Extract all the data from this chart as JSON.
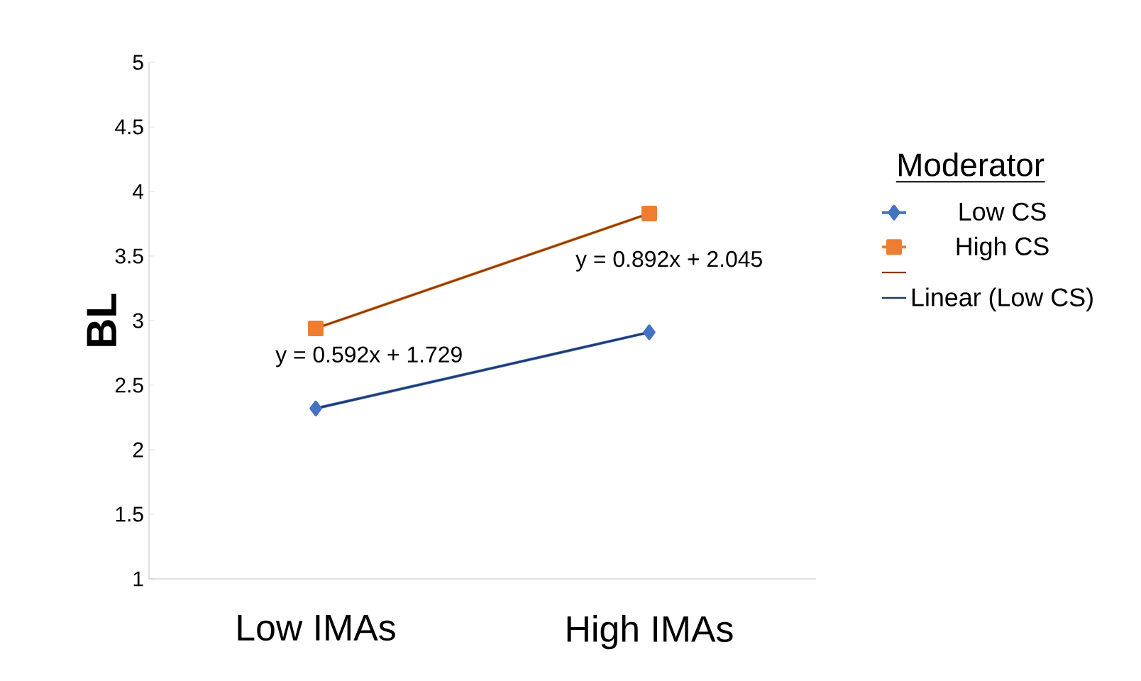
{
  "chart_data": {
    "type": "line",
    "ylabel": "BL",
    "legend_title": "Moderator",
    "categories": [
      "Low IMAs",
      "High IMAs"
    ],
    "series": [
      {
        "name": "Low CS",
        "color": "#4472c4",
        "values": [
          2.32,
          2.91
        ],
        "marker": "diamond"
      },
      {
        "name": "High CS",
        "color": "#ed7d31",
        "values": [
          2.94,
          3.83
        ],
        "marker": "square"
      },
      {
        "color": "#843c0c",
        "values": [
          2.94,
          3.83
        ],
        "marker": "none"
      },
      {
        "name": "Linear (Low CS)",
        "color": "#203864",
        "values": [
          2.32,
          2.91
        ],
        "marker": "none"
      }
    ],
    "ylim": [
      1,
      5
    ],
    "yticks": [
      1,
      1.5,
      2,
      2.5,
      3,
      3.5,
      4,
      4.5,
      5
    ],
    "grid": false,
    "legend": "right",
    "annotations": [
      "y = 0.892x + 2.045",
      "y = 0.592x + 1.729"
    ]
  }
}
